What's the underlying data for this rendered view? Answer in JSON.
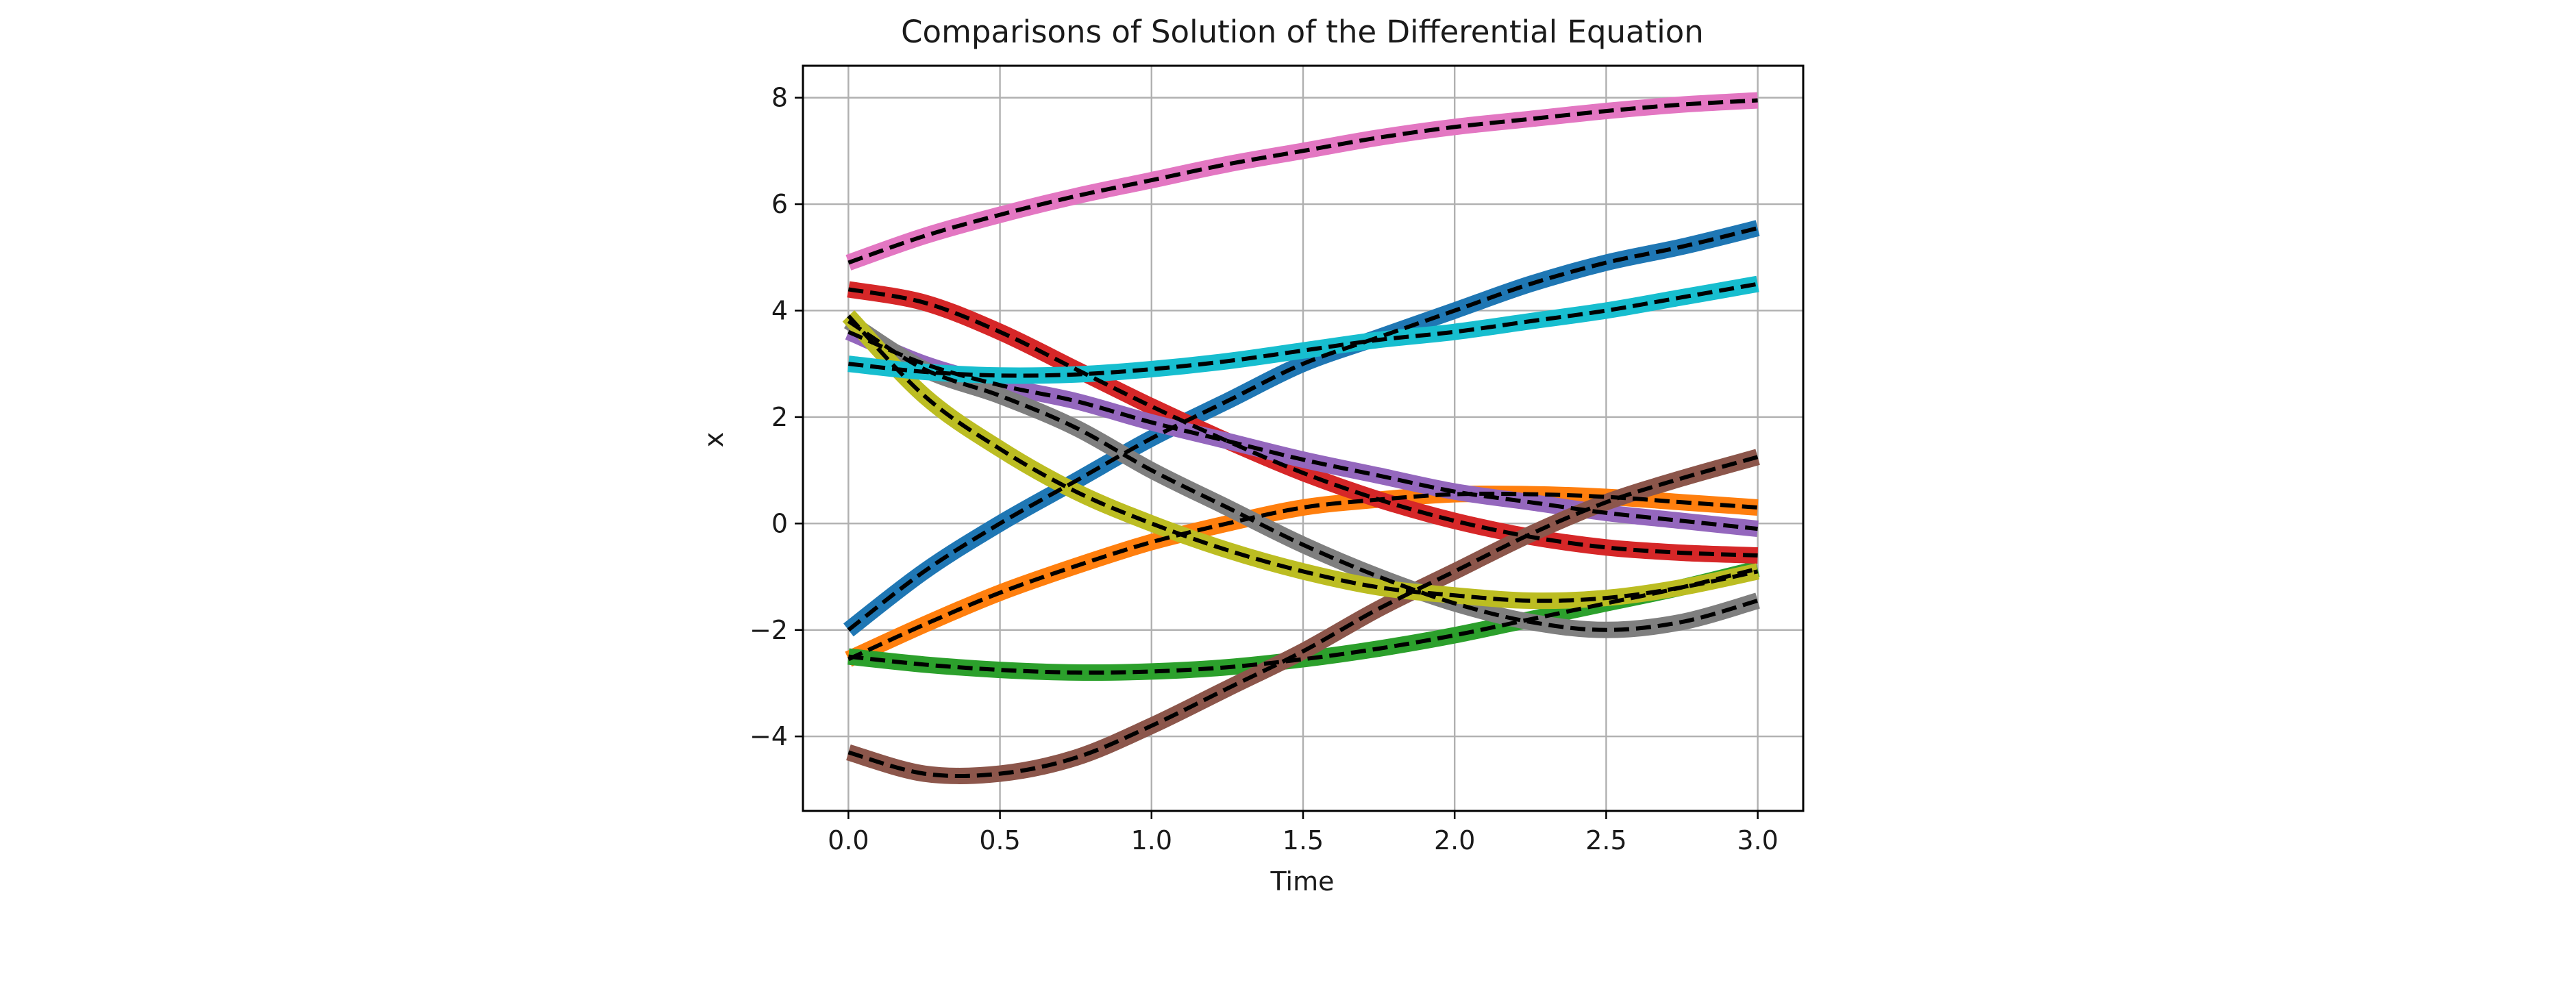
{
  "chart_data": {
    "type": "line",
    "title": "Comparisons of Solution of the Differential Equation",
    "xlabel": "Time",
    "ylabel": "x",
    "xlim": [
      -0.15,
      3.15
    ],
    "ylim": [
      -5.4,
      8.6
    ],
    "xticks": [
      0.0,
      0.5,
      1.0,
      1.5,
      2.0,
      2.5,
      3.0
    ],
    "xtick_labels": [
      "0.0",
      "0.5",
      "1.0",
      "1.5",
      "2.0",
      "2.5",
      "3.0"
    ],
    "yticks": [
      -4,
      -2,
      0,
      2,
      4,
      6,
      8
    ],
    "ytick_labels": [
      "−4",
      "−2",
      "0",
      "2",
      "4",
      "6",
      "8"
    ],
    "grid": true,
    "x": [
      0.0,
      0.25,
      0.5,
      0.75,
      1.0,
      1.25,
      1.5,
      1.75,
      2.0,
      2.25,
      2.5,
      2.75,
      3.0
    ],
    "series": [
      {
        "color": "#1f77b4",
        "overlay": "dashed-black",
        "values": [
          -2.0,
          -0.9,
          0.0,
          0.8,
          1.6,
          2.3,
          3.0,
          3.5,
          4.0,
          4.5,
          4.9,
          5.2,
          5.55
        ]
      },
      {
        "color": "#ff7f0e",
        "overlay": "dashed-black",
        "values": [
          -2.55,
          -1.9,
          -1.3,
          -0.8,
          -0.35,
          0.0,
          0.3,
          0.45,
          0.55,
          0.55,
          0.5,
          0.4,
          0.3
        ]
      },
      {
        "color": "#2ca02c",
        "overlay": "dashed-black",
        "values": [
          -2.5,
          -2.65,
          -2.75,
          -2.8,
          -2.78,
          -2.7,
          -2.55,
          -2.35,
          -2.1,
          -1.8,
          -1.5,
          -1.2,
          -0.85
        ]
      },
      {
        "color": "#d62728",
        "overlay": "dashed-black",
        "values": [
          4.4,
          4.15,
          3.6,
          2.9,
          2.2,
          1.55,
          0.95,
          0.45,
          0.05,
          -0.25,
          -0.45,
          -0.55,
          -0.6
        ]
      },
      {
        "color": "#9467bd",
        "overlay": "dashed-black",
        "values": [
          3.6,
          3.0,
          2.6,
          2.3,
          1.9,
          1.55,
          1.2,
          0.9,
          0.6,
          0.4,
          0.2,
          0.05,
          -0.1
        ]
      },
      {
        "color": "#8c564b",
        "overlay": "dashed-black",
        "values": [
          -4.3,
          -4.7,
          -4.7,
          -4.4,
          -3.8,
          -3.1,
          -2.4,
          -1.6,
          -0.9,
          -0.2,
          0.4,
          0.85,
          1.25
        ]
      },
      {
        "color": "#e377c2",
        "overlay": "dashed-black",
        "values": [
          4.9,
          5.4,
          5.8,
          6.15,
          6.45,
          6.75,
          7.0,
          7.25,
          7.45,
          7.6,
          7.75,
          7.87,
          7.95
        ]
      },
      {
        "color": "#7f7f7f",
        "overlay": "dashed-black",
        "values": [
          3.8,
          2.9,
          2.4,
          1.8,
          1.0,
          0.3,
          -0.4,
          -1.0,
          -1.5,
          -1.85,
          -2.0,
          -1.85,
          -1.45
        ]
      },
      {
        "color": "#bcbd22",
        "overlay": "dashed-black",
        "values": [
          3.9,
          2.4,
          1.4,
          0.6,
          0.0,
          -0.5,
          -0.9,
          -1.2,
          -1.35,
          -1.45,
          -1.4,
          -1.2,
          -0.9
        ]
      },
      {
        "color": "#17becf",
        "overlay": "dashed-black",
        "values": [
          3.0,
          2.85,
          2.78,
          2.8,
          2.9,
          3.05,
          3.25,
          3.45,
          3.6,
          3.8,
          4.0,
          4.25,
          4.5
        ]
      }
    ]
  }
}
